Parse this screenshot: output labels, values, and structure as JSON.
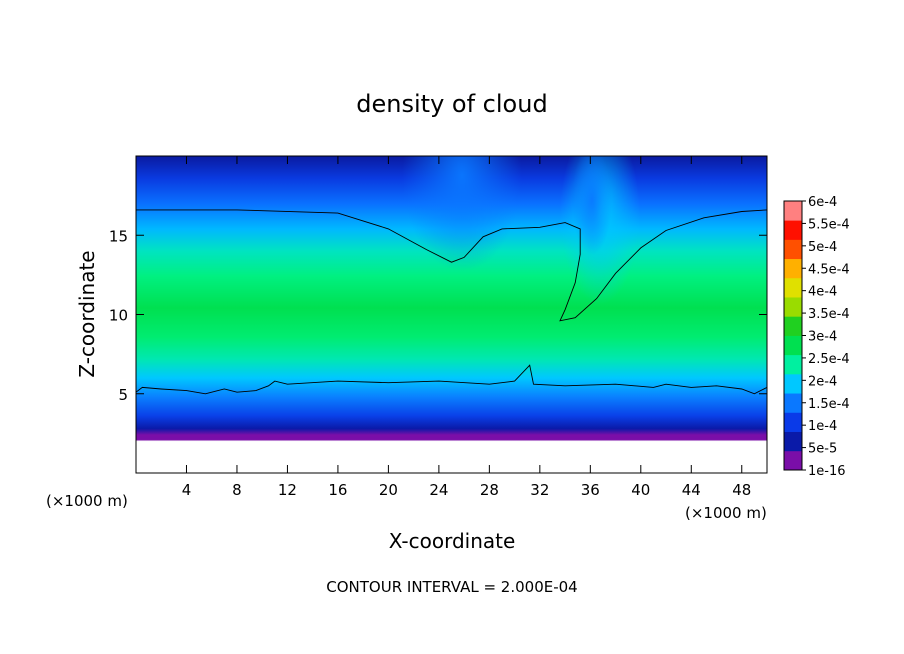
{
  "chart_data": {
    "type": "heatmap",
    "title": "density of cloud",
    "xlabel": "X-coordinate",
    "ylabel": "Z-coordinate",
    "x_unit_left": "(×1000 m)",
    "x_unit_right": "(×1000 m)",
    "xlim": [
      0,
      50
    ],
    "ylim": [
      0,
      20
    ],
    "x_ticks": [
      4,
      8,
      12,
      16,
      20,
      24,
      28,
      32,
      36,
      40,
      44,
      48
    ],
    "y_ticks": [
      5,
      10,
      15
    ],
    "colorbar": {
      "labels": [
        "1e-16",
        "5e-5",
        "1e-4",
        "1.5e-4",
        "2e-4",
        "2.5e-4",
        "3e-4",
        "3.5e-4",
        "4e-4",
        "4.5e-4",
        "5e-4",
        "5.5e-4",
        "6e-4"
      ],
      "colors": [
        "#7a0ea8",
        "#0a1aa8",
        "#0a3ae8",
        "#0a78ff",
        "#00c8ff",
        "#00f0a0",
        "#00e050",
        "#20d020",
        "#9adc00",
        "#e0e000",
        "#ffb000",
        "#ff5000",
        "#ff1000",
        "#ff8080"
      ]
    },
    "contour_interval": "CONTOUR INTERVAL = 2.000E-04",
    "contour_2e4": {
      "upper": [
        [
          0,
          16.6
        ],
        [
          8,
          16.6
        ],
        [
          16,
          16.4
        ],
        [
          20,
          15.4
        ],
        [
          23,
          14.1
        ],
        [
          25,
          13.3
        ],
        [
          26,
          13.6
        ],
        [
          27.5,
          14.9
        ],
        [
          29,
          15.4
        ],
        [
          32,
          15.5
        ],
        [
          34,
          15.8
        ],
        [
          35.2,
          15.4
        ],
        [
          35.2,
          13.8
        ],
        [
          34.8,
          12
        ],
        [
          34,
          10.3
        ],
        [
          33.6,
          9.6
        ],
        [
          34.8,
          9.8
        ],
        [
          36.5,
          11
        ],
        [
          38,
          12.6
        ],
        [
          40,
          14.2
        ],
        [
          42,
          15.3
        ],
        [
          45,
          16.1
        ],
        [
          48,
          16.5
        ],
        [
          50,
          16.6
        ]
      ],
      "lower": [
        [
          0,
          5.1
        ],
        [
          0.5,
          5.4
        ],
        [
          2,
          5.3
        ],
        [
          4,
          5.2
        ],
        [
          5.5,
          5.0
        ],
        [
          7,
          5.3
        ],
        [
          8,
          5.1
        ],
        [
          9.5,
          5.2
        ],
        [
          10.5,
          5.5
        ],
        [
          11,
          5.8
        ],
        [
          12,
          5.6
        ],
        [
          16,
          5.8
        ],
        [
          20,
          5.7
        ],
        [
          24,
          5.8
        ],
        [
          28,
          5.6
        ],
        [
          30,
          5.8
        ],
        [
          31.2,
          6.8
        ],
        [
          31.5,
          5.6
        ],
        [
          34,
          5.5
        ],
        [
          38,
          5.6
        ],
        [
          41,
          5.4
        ],
        [
          42,
          5.6
        ],
        [
          44,
          5.4
        ],
        [
          46,
          5.5
        ],
        [
          48,
          5.3
        ],
        [
          49,
          5.0
        ],
        [
          50,
          5.4
        ]
      ]
    }
  }
}
